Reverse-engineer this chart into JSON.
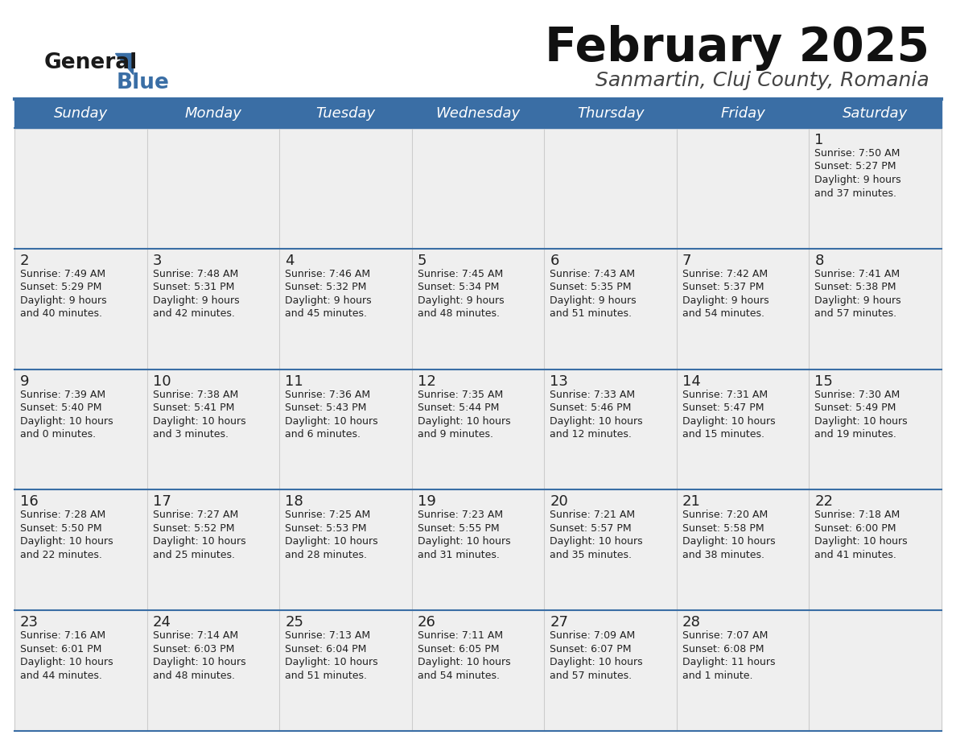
{
  "title": "February 2025",
  "subtitle": "Sanmartin, Cluj County, Romania",
  "header_bg": "#3a6ea5",
  "header_text_color": "#ffffff",
  "cell_bg_light": "#efefef",
  "cell_bg_white": "#ffffff",
  "border_color": "#3a6ea5",
  "row_border_color": "#3a6ea5",
  "cell_border_color": "#cccccc",
  "text_color": "#222222",
  "days_of_week": [
    "Sunday",
    "Monday",
    "Tuesday",
    "Wednesday",
    "Thursday",
    "Friday",
    "Saturday"
  ],
  "calendar_data": [
    [
      {
        "day": "",
        "sunrise": "",
        "sunset": "",
        "daylight": ""
      },
      {
        "day": "",
        "sunrise": "",
        "sunset": "",
        "daylight": ""
      },
      {
        "day": "",
        "sunrise": "",
        "sunset": "",
        "daylight": ""
      },
      {
        "day": "",
        "sunrise": "",
        "sunset": "",
        "daylight": ""
      },
      {
        "day": "",
        "sunrise": "",
        "sunset": "",
        "daylight": ""
      },
      {
        "day": "",
        "sunrise": "",
        "sunset": "",
        "daylight": ""
      },
      {
        "day": "1",
        "sunrise": "7:50 AM",
        "sunset": "5:27 PM",
        "daylight": "9 hours and 37 minutes."
      }
    ],
    [
      {
        "day": "2",
        "sunrise": "7:49 AM",
        "sunset": "5:29 PM",
        "daylight": "9 hours and 40 minutes."
      },
      {
        "day": "3",
        "sunrise": "7:48 AM",
        "sunset": "5:31 PM",
        "daylight": "9 hours and 42 minutes."
      },
      {
        "day": "4",
        "sunrise": "7:46 AM",
        "sunset": "5:32 PM",
        "daylight": "9 hours and 45 minutes."
      },
      {
        "day": "5",
        "sunrise": "7:45 AM",
        "sunset": "5:34 PM",
        "daylight": "9 hours and 48 minutes."
      },
      {
        "day": "6",
        "sunrise": "7:43 AM",
        "sunset": "5:35 PM",
        "daylight": "9 hours and 51 minutes."
      },
      {
        "day": "7",
        "sunrise": "7:42 AM",
        "sunset": "5:37 PM",
        "daylight": "9 hours and 54 minutes."
      },
      {
        "day": "8",
        "sunrise": "7:41 AM",
        "sunset": "5:38 PM",
        "daylight": "9 hours and 57 minutes."
      }
    ],
    [
      {
        "day": "9",
        "sunrise": "7:39 AM",
        "sunset": "5:40 PM",
        "daylight": "10 hours and 0 minutes."
      },
      {
        "day": "10",
        "sunrise": "7:38 AM",
        "sunset": "5:41 PM",
        "daylight": "10 hours and 3 minutes."
      },
      {
        "day": "11",
        "sunrise": "7:36 AM",
        "sunset": "5:43 PM",
        "daylight": "10 hours and 6 minutes."
      },
      {
        "day": "12",
        "sunrise": "7:35 AM",
        "sunset": "5:44 PM",
        "daylight": "10 hours and 9 minutes."
      },
      {
        "day": "13",
        "sunrise": "7:33 AM",
        "sunset": "5:46 PM",
        "daylight": "10 hours and 12 minutes."
      },
      {
        "day": "14",
        "sunrise": "7:31 AM",
        "sunset": "5:47 PM",
        "daylight": "10 hours and 15 minutes."
      },
      {
        "day": "15",
        "sunrise": "7:30 AM",
        "sunset": "5:49 PM",
        "daylight": "10 hours and 19 minutes."
      }
    ],
    [
      {
        "day": "16",
        "sunrise": "7:28 AM",
        "sunset": "5:50 PM",
        "daylight": "10 hours and 22 minutes."
      },
      {
        "day": "17",
        "sunrise": "7:27 AM",
        "sunset": "5:52 PM",
        "daylight": "10 hours and 25 minutes."
      },
      {
        "day": "18",
        "sunrise": "7:25 AM",
        "sunset": "5:53 PM",
        "daylight": "10 hours and 28 minutes."
      },
      {
        "day": "19",
        "sunrise": "7:23 AM",
        "sunset": "5:55 PM",
        "daylight": "10 hours and 31 minutes."
      },
      {
        "day": "20",
        "sunrise": "7:21 AM",
        "sunset": "5:57 PM",
        "daylight": "10 hours and 35 minutes."
      },
      {
        "day": "21",
        "sunrise": "7:20 AM",
        "sunset": "5:58 PM",
        "daylight": "10 hours and 38 minutes."
      },
      {
        "day": "22",
        "sunrise": "7:18 AM",
        "sunset": "6:00 PM",
        "daylight": "10 hours and 41 minutes."
      }
    ],
    [
      {
        "day": "23",
        "sunrise": "7:16 AM",
        "sunset": "6:01 PM",
        "daylight": "10 hours and 44 minutes."
      },
      {
        "day": "24",
        "sunrise": "7:14 AM",
        "sunset": "6:03 PM",
        "daylight": "10 hours and 48 minutes."
      },
      {
        "day": "25",
        "sunrise": "7:13 AM",
        "sunset": "6:04 PM",
        "daylight": "10 hours and 51 minutes."
      },
      {
        "day": "26",
        "sunrise": "7:11 AM",
        "sunset": "6:05 PM",
        "daylight": "10 hours and 54 minutes."
      },
      {
        "day": "27",
        "sunrise": "7:09 AM",
        "sunset": "6:07 PM",
        "daylight": "10 hours and 57 minutes."
      },
      {
        "day": "28",
        "sunrise": "7:07 AM",
        "sunset": "6:08 PM",
        "daylight": "11 hours and 1 minute."
      },
      {
        "day": "",
        "sunrise": "",
        "sunset": "",
        "daylight": ""
      }
    ]
  ],
  "logo_general_color": "#1a1a1a",
  "logo_blue_color": "#3a6ea5",
  "title_fontsize": 42,
  "subtitle_fontsize": 18,
  "header_fontsize": 13,
  "day_num_fontsize": 13,
  "cell_text_fontsize": 9
}
